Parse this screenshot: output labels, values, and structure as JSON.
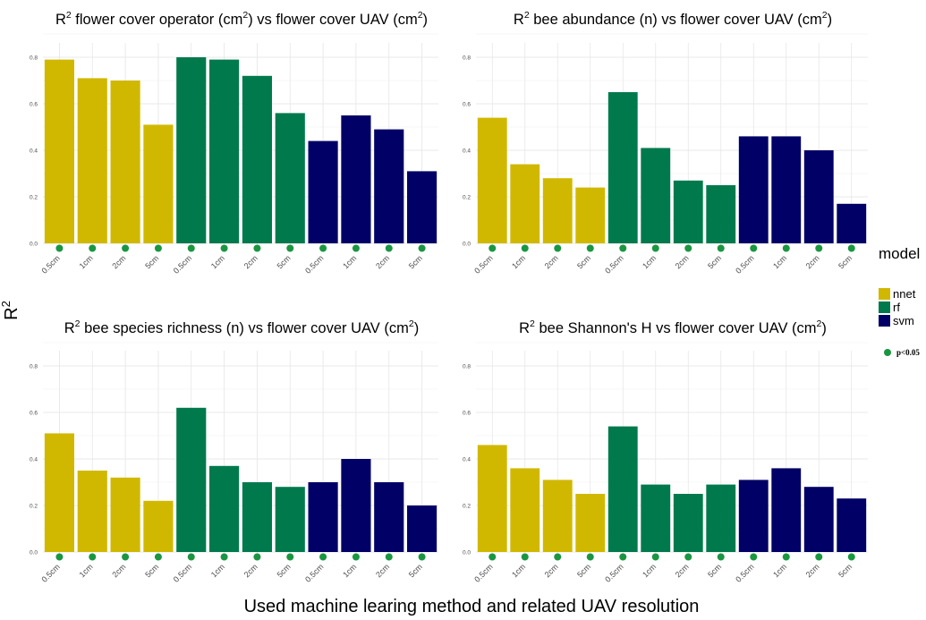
{
  "xlabel": "Used machine learing method and related UAV resolution",
  "ylabel": {
    "base": "R",
    "sup": "2"
  },
  "legend": {
    "title": "model",
    "items": [
      {
        "label": "nnet",
        "color": "#D1B800"
      },
      {
        "label": "rf",
        "color": "#007A4D"
      },
      {
        "label": "svm",
        "color": "#000066"
      }
    ],
    "significance": {
      "label": "p<0.05",
      "color": "#1A9641"
    }
  },
  "chart_data": [
    {
      "type": "bar",
      "title": {
        "parts": [
          "R",
          "2",
          " flower cover operator (cm",
          "2",
          ") vs flower cover UAV (cm",
          "2",
          ")"
        ]
      },
      "categories": [
        "0.5cm",
        "1cm",
        "2cm",
        "5cm",
        "0.5cm",
        "1cm",
        "2cm",
        "5cm",
        "0.5cm",
        "1cm",
        "2cm",
        "5cm"
      ],
      "models": [
        "nnet",
        "nnet",
        "nnet",
        "nnet",
        "rf",
        "rf",
        "rf",
        "rf",
        "svm",
        "svm",
        "svm",
        "svm"
      ],
      "values": [
        0.79,
        0.71,
        0.7,
        0.51,
        0.8,
        0.79,
        0.72,
        0.56,
        0.44,
        0.55,
        0.49,
        0.31
      ],
      "significant": [
        true,
        true,
        true,
        true,
        true,
        true,
        true,
        true,
        true,
        true,
        true,
        true
      ],
      "ylim": [
        0,
        0.85
      ],
      "yticks": [
        "0.0",
        "0.2",
        "0.4",
        "0.6",
        "0.8"
      ],
      "grid": true
    },
    {
      "type": "bar",
      "title": {
        "parts": [
          "R",
          "2",
          " bee abundance (n) vs flower cover UAV (cm",
          "2",
          ")"
        ]
      },
      "categories": [
        "0.5cm",
        "1cm",
        "2cm",
        "5cm",
        "0.5cm",
        "1cm",
        "2cm",
        "5cm",
        "0.5cm",
        "1cm",
        "2cm",
        "5cm"
      ],
      "models": [
        "nnet",
        "nnet",
        "nnet",
        "nnet",
        "rf",
        "rf",
        "rf",
        "rf",
        "svm",
        "svm",
        "svm",
        "svm"
      ],
      "values": [
        0.54,
        0.34,
        0.28,
        0.24,
        0.65,
        0.41,
        0.27,
        0.25,
        0.46,
        0.46,
        0.4,
        0.17
      ],
      "significant": [
        true,
        true,
        true,
        true,
        true,
        true,
        true,
        true,
        true,
        true,
        true,
        true
      ],
      "ylim": [
        0,
        0.85
      ],
      "yticks": [
        "0.0",
        "0.2",
        "0.4",
        "0.6",
        "0.8"
      ],
      "grid": true
    },
    {
      "type": "bar",
      "title": {
        "parts": [
          "R",
          "2",
          " bee species richness (n) vs flower cover UAV (cm",
          "2",
          ")"
        ]
      },
      "categories": [
        "0.5cm",
        "1cm",
        "2cm",
        "5cm",
        "0.5cm",
        "1cm",
        "2cm",
        "5cm",
        "0.5cm",
        "1cm",
        "2cm",
        "5cm"
      ],
      "models": [
        "nnet",
        "nnet",
        "nnet",
        "nnet",
        "rf",
        "rf",
        "rf",
        "rf",
        "svm",
        "svm",
        "svm",
        "svm"
      ],
      "values": [
        0.51,
        0.35,
        0.32,
        0.22,
        0.62,
        0.37,
        0.3,
        0.28,
        0.3,
        0.4,
        0.3,
        0.2
      ],
      "significant": [
        true,
        true,
        true,
        true,
        true,
        true,
        true,
        true,
        true,
        true,
        true,
        true
      ],
      "ylim": [
        0,
        0.85
      ],
      "yticks": [
        "0.0",
        "0.2",
        "0.4",
        "0.6",
        "0.8"
      ],
      "grid": true
    },
    {
      "type": "bar",
      "title": {
        "parts": [
          "R",
          "2",
          " bee Shannon's H vs flower cover UAV (cm",
          "2",
          ")"
        ]
      },
      "categories": [
        "0.5cm",
        "1cm",
        "2cm",
        "5cm",
        "0.5cm",
        "1cm",
        "2cm",
        "5cm",
        "0.5cm",
        "1cm",
        "2cm",
        "5cm"
      ],
      "models": [
        "nnet",
        "nnet",
        "nnet",
        "nnet",
        "rf",
        "rf",
        "rf",
        "rf",
        "svm",
        "svm",
        "svm",
        "svm"
      ],
      "values": [
        0.46,
        0.36,
        0.31,
        0.25,
        0.54,
        0.29,
        0.25,
        0.29,
        0.31,
        0.36,
        0.28,
        0.23
      ],
      "significant": [
        true,
        true,
        true,
        true,
        true,
        true,
        true,
        true,
        true,
        true,
        true,
        true
      ],
      "ylim": [
        0,
        0.85
      ],
      "yticks": [
        "0.0",
        "0.2",
        "0.4",
        "0.6",
        "0.8"
      ],
      "grid": true
    }
  ]
}
